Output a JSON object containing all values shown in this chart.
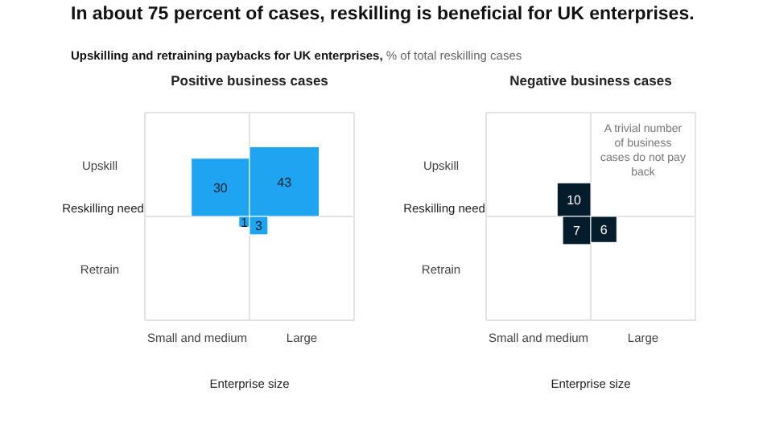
{
  "chart_data": [
    {
      "type": "other",
      "title": "Positive business cases",
      "annotations": [
        "In about 75 percent of cases, reskilling is beneficial for UK enterprises.",
        "Upskilling and retraining paybacks for UK enterprises,",
        "% of total reskilling cases"
      ],
      "xlabel": "Enterprise size",
      "ylabel": "Reskilling need",
      "categories": [
        "Small and medium",
        "Large"
      ],
      "y_categories": [
        "Upskill",
        "Retrain"
      ],
      "series": [
        {
          "color": "#1ea4f0",
          "values": [
            30,
            43
          ]
        },
        {
          "color": "#1ea4f0",
          "values": [
            1,
            3
          ]
        }
      ],
      "data_labels": true
    },
    {
      "type": "other",
      "title": "Negative business cases",
      "annotations": [
        {
          "text": "A trivial number of business cases do not pay back",
          "x": "Large",
          "y": "Upskill"
        }
      ],
      "xlabel": "Enterprise size",
      "ylabel": "Reskilling need",
      "categories": [
        "Small and medium",
        "Large"
      ],
      "y_categories": [
        "Upskill",
        "Retrain"
      ],
      "series": [
        {
          "color": "#051c2c",
          "values": [
            10,
            null
          ]
        },
        {
          "color": "#051c2c",
          "values": [
            7,
            6
          ]
        }
      ],
      "data_labels": true
    }
  ]
}
